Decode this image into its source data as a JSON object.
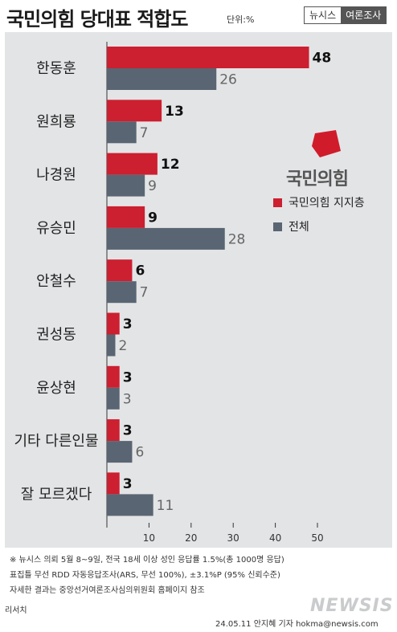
{
  "header": {
    "title": "국민의힘 당대표 적합도",
    "unit": "단위:%",
    "brand_a": "뉴시스",
    "brand_b": "여론조사"
  },
  "legend": {
    "logo_text": "국민의힘",
    "items": [
      "국민의힘 지지층",
      "전체"
    ]
  },
  "colors": {
    "supporters": "#cc1f30",
    "total": "#596572",
    "logo": "#d01c2a"
  },
  "chart_data": {
    "type": "bar",
    "orientation": "horizontal",
    "categories": [
      "한동훈",
      "원희룡",
      "나경원",
      "유승민",
      "안철수",
      "권성동",
      "윤상현",
      "기타 다른인물",
      "잘 모르겠다"
    ],
    "series": [
      {
        "name": "국민의힘 지지층",
        "values": [
          48,
          13,
          12,
          9,
          6,
          3,
          3,
          3,
          3
        ]
      },
      {
        "name": "전체",
        "values": [
          26,
          7,
          9,
          28,
          7,
          2,
          3,
          6,
          11
        ]
      }
    ],
    "xlim": [
      0,
      50
    ],
    "xticks": [
      "10",
      "20",
      "30",
      "40",
      "50"
    ]
  },
  "footer": {
    "note1": "※ 뉴시스 의뢰 5월 8~9일, 전국 18세 이상 성인 응답률 1.5%(총 1000명 응답)",
    "note2": "표집틀 무선 RDD 자동응답조사(ARS, 무선 100%), ±3.1%P (95% 신뢰수준)",
    "note3": "자세한 결과는 중앙선거여론조사심의위원회 홈페이지 참조",
    "company": "리서치",
    "newsis": "NEWSIS",
    "byline": "24.05.11 안지혜 기자 hokma@newsis.com"
  }
}
